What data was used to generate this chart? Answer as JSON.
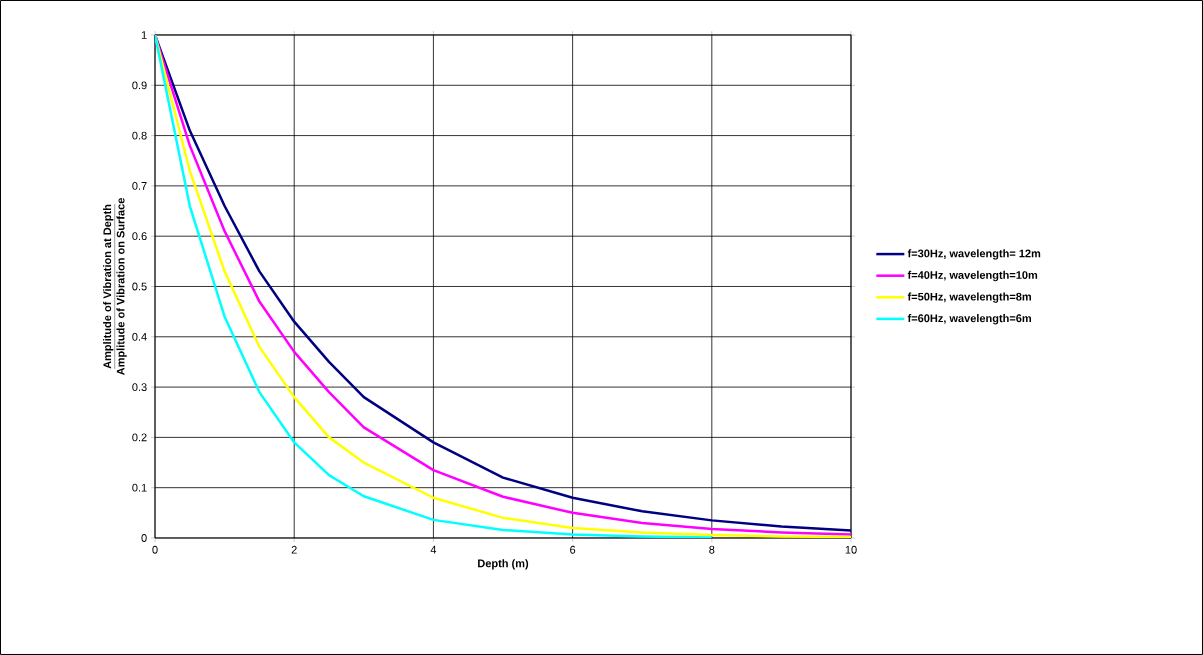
{
  "chart_data": {
    "type": "line",
    "xlabel": "Depth (m)",
    "ylabel": "Amplitude of Vibration at Depth",
    "annotations": [
      "Amplitude of Vibration on Surface"
    ],
    "x": [
      0,
      0.5,
      1,
      1.5,
      2,
      2.5,
      3,
      4,
      5,
      6,
      7,
      8,
      9,
      10
    ],
    "series": [
      {
        "name": "f=30Hz, wavelength= 12m",
        "color": "#000080",
        "values": [
          1,
          0.81,
          0.66,
          0.53,
          0.43,
          0.35,
          0.28,
          0.19,
          0.12,
          0.08,
          0.053,
          0.035,
          0.023,
          0.015
        ]
      },
      {
        "name": "f=40Hz, wavelength=10m",
        "color": "#ff00ff",
        "values": [
          1,
          0.78,
          0.61,
          0.47,
          0.37,
          0.29,
          0.22,
          0.135,
          0.082,
          0.05,
          0.03,
          0.018,
          0.011,
          0.007
        ]
      },
      {
        "name": "f=50Hz, wavelength=8m",
        "color": "#ffff00",
        "values": [
          1,
          0.73,
          0.53,
          0.38,
          0.28,
          0.2,
          0.15,
          0.08,
          0.04,
          0.02,
          0.011,
          0.006,
          0.003,
          0.002
        ]
      },
      {
        "name": "f=60Hz, wavelength=6m",
        "color": "#00ffff",
        "values": [
          1,
          0.66,
          0.44,
          0.29,
          0.19,
          0.125,
          0.083,
          0.036,
          0.016,
          0.007,
          0.003,
          0.001,
          null,
          null
        ]
      }
    ],
    "xlim": [
      0,
      10
    ],
    "xticks": [
      0,
      2,
      4,
      6,
      8,
      10
    ],
    "ylim": [
      0,
      1
    ],
    "yticks": [
      0,
      0.1,
      0.2,
      0.3,
      0.4,
      0.5,
      0.6,
      0.7,
      0.8,
      0.9,
      1
    ],
    "grid": true,
    "legend": "right",
    "marker": "none",
    "line_style": "solid"
  }
}
